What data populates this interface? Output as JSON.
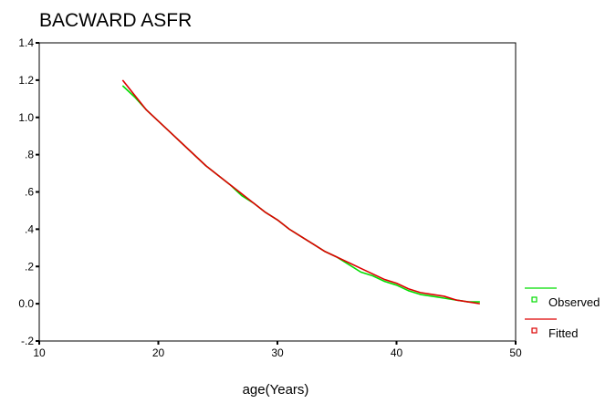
{
  "chart_data": {
    "type": "line",
    "title": "BACWARD ASFR",
    "xlabel": "age(Years)",
    "ylabel": "",
    "xlim": [
      10,
      50
    ],
    "ylim": [
      -0.2,
      1.4
    ],
    "x_ticks": [
      10,
      20,
      30,
      40,
      50
    ],
    "x_tick_labels": [
      "10",
      "20",
      "30",
      "40",
      "50"
    ],
    "y_ticks": [
      -0.2,
      0,
      0.2,
      0.4,
      0.6,
      0.8,
      1.0,
      1.2,
      1.4
    ],
    "y_tick_labels": [
      "-.2",
      "0.0",
      ".2",
      ".4",
      ".6",
      ".8",
      "1.0",
      "1.2",
      "1.4"
    ],
    "grid": false,
    "legend_position": "right",
    "series": [
      {
        "name": "Observed",
        "color": "#00dd00",
        "x": [
          17,
          18,
          19,
          20,
          21,
          22,
          23,
          24,
          25,
          26,
          27,
          28,
          29,
          30,
          31,
          32,
          33,
          34,
          35,
          36,
          37,
          38,
          39,
          40,
          41,
          42,
          43,
          44,
          45,
          46,
          47
        ],
        "y": [
          1.17,
          1.11,
          1.04,
          0.98,
          0.92,
          0.86,
          0.8,
          0.74,
          0.69,
          0.64,
          0.58,
          0.54,
          0.49,
          0.45,
          0.4,
          0.36,
          0.32,
          0.28,
          0.25,
          0.21,
          0.17,
          0.15,
          0.12,
          0.1,
          0.07,
          0.05,
          0.04,
          0.03,
          0.02,
          0.01,
          0.01
        ]
      },
      {
        "name": "Fitted",
        "color": "#dd0000",
        "x": [
          17,
          18,
          19,
          20,
          21,
          22,
          23,
          24,
          25,
          26,
          27,
          28,
          29,
          30,
          31,
          32,
          33,
          34,
          35,
          36,
          37,
          38,
          39,
          40,
          41,
          42,
          43,
          44,
          45,
          46,
          47
        ],
        "y": [
          1.2,
          1.12,
          1.04,
          0.98,
          0.92,
          0.86,
          0.8,
          0.74,
          0.69,
          0.64,
          0.59,
          0.54,
          0.49,
          0.45,
          0.4,
          0.36,
          0.32,
          0.28,
          0.25,
          0.22,
          0.19,
          0.16,
          0.13,
          0.11,
          0.08,
          0.06,
          0.05,
          0.04,
          0.02,
          0.01,
          0.0
        ]
      }
    ]
  }
}
